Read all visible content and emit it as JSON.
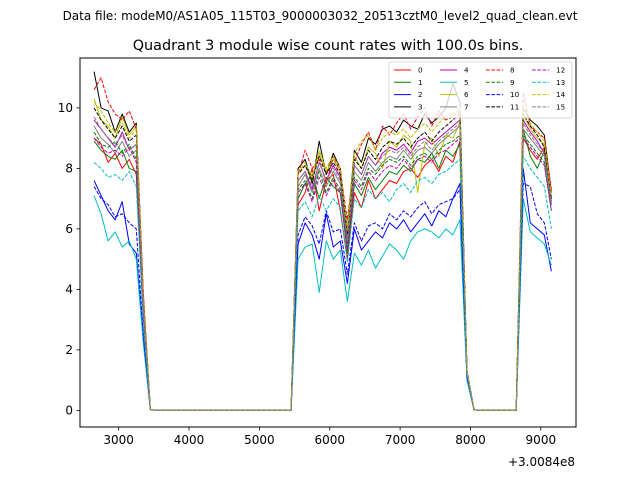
{
  "figure": {
    "suptitle": "Data file: modeM0/AS1A05_115T03_9000003032_20513cztM0_level2_quad_clean.evt"
  },
  "chart_data": {
    "type": "line",
    "title": "Quadrant 3 module wise count rates with 100.0s bins.",
    "xlabel": "",
    "ylabel": "",
    "x_offset_label": "+3.0084e8",
    "xlim": [
      2450,
      9500
    ],
    "ylim": [
      -0.55,
      11.65
    ],
    "xticks": [
      3000,
      4000,
      5000,
      6000,
      7000,
      8000,
      9000
    ],
    "xtick_labels": [
      "3000",
      "4000",
      "5000",
      "6000",
      "7000",
      "8000",
      "9000"
    ],
    "yticks": [
      0,
      2,
      4,
      6,
      8,
      10
    ],
    "ytick_labels": [
      "0",
      "2",
      "4",
      "6",
      "8",
      "10"
    ],
    "grid": false,
    "legend_position": "top-right",
    "legend_columns": 4,
    "x": [
      2650,
      2750,
      2850,
      2950,
      3050,
      3150,
      3250,
      3350,
      3450,
      3550,
      3650,
      3750,
      3850,
      3950,
      4050,
      4150,
      4250,
      4350,
      4450,
      4550,
      4650,
      4750,
      4850,
      4950,
      5050,
      5150,
      5250,
      5350,
      5450,
      5550,
      5650,
      5750,
      5850,
      5950,
      6050,
      6150,
      6250,
      6350,
      6450,
      6550,
      6650,
      6750,
      6850,
      6950,
      7050,
      7150,
      7250,
      7350,
      7450,
      7550,
      7650,
      7750,
      7850,
      7950,
      8050,
      8150,
      8250,
      8350,
      8450,
      8550,
      8650,
      8750,
      8850,
      8950,
      9050,
      9150
    ],
    "series": [
      {
        "name": "0",
        "color": "#ff0000",
        "dash": "solid",
        "values": [
          9.0,
          8.8,
          8.2,
          8.5,
          8.0,
          8.3,
          7.8,
          3.0,
          0.02,
          0,
          0,
          0,
          0,
          0,
          0,
          0,
          0,
          0,
          0,
          0,
          0,
          0,
          0,
          0,
          0,
          0,
          0,
          0,
          0,
          6.8,
          7.2,
          8.0,
          6.6,
          7.6,
          7.8,
          6.6,
          5.0,
          7.2,
          6.7,
          7.6,
          7.0,
          7.3,
          7.6,
          7.5,
          7.9,
          8.0,
          7.7,
          8.1,
          8.3,
          7.9,
          8.4,
          8.2,
          8.9,
          1.3,
          0.02,
          0,
          0,
          0,
          0,
          0,
          0,
          9.0,
          8.6,
          8.3,
          8.7,
          7.0
        ]
      },
      {
        "name": "1",
        "color": "#008000",
        "dash": "solid",
        "values": [
          8.9,
          8.6,
          8.4,
          8.3,
          8.6,
          8.0,
          7.9,
          3.1,
          0.02,
          0,
          0,
          0,
          0,
          0,
          0,
          0,
          0,
          0,
          0,
          0,
          0,
          0,
          0,
          0,
          0,
          0,
          0,
          0,
          0,
          7.0,
          7.5,
          7.8,
          7.0,
          7.7,
          7.4,
          7.2,
          5.2,
          7.5,
          7.1,
          7.7,
          7.3,
          7.6,
          7.9,
          7.8,
          8.1,
          7.9,
          8.3,
          8.2,
          8.5,
          8.0,
          8.6,
          8.4,
          8.8,
          1.2,
          0.02,
          0,
          0,
          0,
          0,
          0,
          0,
          9.3,
          8.4,
          8.0,
          8.6,
          6.8
        ]
      },
      {
        "name": "2",
        "color": "#0000ff",
        "dash": "solid",
        "values": [
          7.6,
          7.1,
          6.6,
          6.3,
          6.9,
          5.5,
          5.2,
          2.4,
          0.02,
          0,
          0,
          0,
          0,
          0,
          0,
          0,
          0,
          0,
          0,
          0,
          0,
          0,
          0,
          0,
          0,
          0,
          0,
          0,
          0,
          5.5,
          6.2,
          5.8,
          5.0,
          6.5,
          5.4,
          5.6,
          4.2,
          6.0,
          5.3,
          5.6,
          5.9,
          5.7,
          6.2,
          6.0,
          6.3,
          5.9,
          6.2,
          6.5,
          6.1,
          6.6,
          6.4,
          7.0,
          7.5,
          1.1,
          0.02,
          0,
          0,
          0,
          0,
          0,
          0,
          8.0,
          6.2,
          6.0,
          5.8,
          4.6
        ]
      },
      {
        "name": "3",
        "color": "#000000",
        "dash": "solid",
        "values": [
          11.2,
          10.0,
          9.9,
          9.2,
          9.8,
          9.2,
          9.5,
          3.8,
          0.02,
          0,
          0,
          0,
          0,
          0,
          0,
          0,
          0,
          0,
          0,
          0,
          0,
          0,
          0,
          0,
          0,
          0,
          0,
          0,
          0,
          8.0,
          8.3,
          7.5,
          8.9,
          7.8,
          8.5,
          8.0,
          6.0,
          8.6,
          8.2,
          9.0,
          8.8,
          9.3,
          9.4,
          9.2,
          9.6,
          9.4,
          9.3,
          9.8,
          9.5,
          9.7,
          10.0,
          10.8,
          10.2,
          1.3,
          0.02,
          0,
          0,
          0,
          0,
          0,
          0,
          10.0,
          9.6,
          9.4,
          9.1,
          7.2
        ]
      },
      {
        "name": "4",
        "color": "#bf00bf",
        "dash": "solid",
        "values": [
          9.6,
          9.3,
          9.0,
          8.7,
          9.2,
          8.6,
          8.8,
          3.4,
          0.02,
          0,
          0,
          0,
          0,
          0,
          0,
          0,
          0,
          0,
          0,
          0,
          0,
          0,
          0,
          0,
          0,
          0,
          0,
          0,
          0,
          7.6,
          7.9,
          7.3,
          8.2,
          7.6,
          8.1,
          7.7,
          5.6,
          8.1,
          7.8,
          8.4,
          8.1,
          8.5,
          8.7,
          8.6,
          8.8,
          8.5,
          8.9,
          9.0,
          8.8,
          9.0,
          9.2,
          9.4,
          9.6,
          1.3,
          0.02,
          0,
          0,
          0,
          0,
          0,
          0,
          9.6,
          9.2,
          8.9,
          8.5,
          6.9
        ]
      },
      {
        "name": "5",
        "color": "#00bfbf",
        "dash": "solid",
        "values": [
          7.1,
          6.5,
          5.6,
          5.9,
          5.4,
          5.6,
          5.0,
          2.2,
          0.02,
          0,
          0,
          0,
          0,
          0,
          0,
          0,
          0,
          0,
          0,
          0,
          0,
          0,
          0,
          0,
          0,
          0,
          0,
          0,
          0,
          5.0,
          5.4,
          5.5,
          3.9,
          5.6,
          5.0,
          5.3,
          3.6,
          5.2,
          4.8,
          5.3,
          4.7,
          5.1,
          5.5,
          5.3,
          5.0,
          5.6,
          5.9,
          6.0,
          5.9,
          5.7,
          6.0,
          5.8,
          6.3,
          1.0,
          0.02,
          0,
          0,
          0,
          0,
          0,
          0,
          7.0,
          5.9,
          5.7,
          5.5,
          4.8
        ]
      },
      {
        "name": "6",
        "color": "#bfbf00",
        "dash": "solid",
        "values": [
          10.3,
          9.6,
          9.4,
          9.0,
          9.7,
          9.1,
          9.4,
          3.7,
          0.02,
          0,
          0,
          0,
          0,
          0,
          0,
          0,
          0,
          0,
          0,
          0,
          0,
          0,
          0,
          0,
          0,
          0,
          0,
          0,
          0,
          7.9,
          8.1,
          7.6,
          8.5,
          7.9,
          8.3,
          7.9,
          5.9,
          8.4,
          8.0,
          8.7,
          8.5,
          8.0,
          8.9,
          8.7,
          9.1,
          8.9,
          7.2,
          8.8,
          9.0,
          8.4,
          9.1,
          9.0,
          9.5,
          1.3,
          0.02,
          0,
          0,
          0,
          0,
          0,
          0,
          9.8,
          9.3,
          9.0,
          8.8,
          7.1
        ]
      },
      {
        "name": "7",
        "color": "#808080",
        "dash": "solid",
        "values": [
          9.4,
          9.0,
          8.8,
          8.5,
          8.9,
          8.4,
          8.6,
          3.3,
          0.02,
          0,
          0,
          0,
          0,
          0,
          0,
          0,
          0,
          0,
          0,
          0,
          0,
          0,
          0,
          0,
          0,
          0,
          0,
          0,
          0,
          7.4,
          7.8,
          7.2,
          8.0,
          7.4,
          7.9,
          7.5,
          5.5,
          7.9,
          7.6,
          8.2,
          7.9,
          8.2,
          8.4,
          8.3,
          8.6,
          8.3,
          8.6,
          8.7,
          8.5,
          8.8,
          9.0,
          9.2,
          9.4,
          1.3,
          0.02,
          0,
          0,
          0,
          0,
          0,
          0,
          9.3,
          9.0,
          8.7,
          8.4,
          6.8
        ]
      },
      {
        "name": "8",
        "color": "#ff0000",
        "dash": "dashed",
        "values": [
          10.6,
          11.0,
          10.2,
          9.8,
          9.6,
          9.9,
          9.3,
          3.9,
          0.02,
          0,
          0,
          0,
          0,
          0,
          0,
          0,
          0,
          0,
          0,
          0,
          0,
          0,
          0,
          0,
          0,
          0,
          0,
          0,
          0,
          7.8,
          8.6,
          8.0,
          8.3,
          7.5,
          8.4,
          7.9,
          6.3,
          8.2,
          8.8,
          9.2,
          8.6,
          9.4,
          9.1,
          9.5,
          9.8,
          9.3,
          9.7,
          10.0,
          9.4,
          9.9,
          9.6,
          9.7,
          9.9,
          1.3,
          0.02,
          0,
          0,
          0,
          0,
          0,
          0,
          10.5,
          9.4,
          9.2,
          9.0,
          7.3
        ]
      },
      {
        "name": "9",
        "color": "#008000",
        "dash": "dashed",
        "values": [
          9.2,
          8.8,
          8.7,
          8.9,
          8.5,
          8.8,
          8.3,
          3.3,
          0.02,
          0,
          0,
          0,
          0,
          0,
          0,
          0,
          0,
          0,
          0,
          0,
          0,
          0,
          0,
          0,
          0,
          0,
          0,
          0,
          0,
          7.3,
          7.6,
          7.0,
          7.9,
          7.2,
          7.7,
          7.3,
          5.4,
          7.7,
          7.4,
          8.0,
          7.8,
          8.1,
          8.3,
          8.2,
          8.4,
          8.1,
          8.4,
          8.5,
          8.3,
          8.6,
          8.8,
          8.9,
          9.1,
          1.3,
          0.02,
          0,
          0,
          0,
          0,
          0,
          0,
          9.1,
          8.8,
          8.5,
          8.2,
          6.6
        ]
      },
      {
        "name": "10",
        "color": "#0000ff",
        "dash": "dashed",
        "values": [
          7.4,
          7.0,
          6.8,
          6.4,
          6.5,
          6.2,
          6.0,
          2.5,
          0.02,
          0,
          0,
          0,
          0,
          0,
          0,
          0,
          0,
          0,
          0,
          0,
          0,
          0,
          0,
          0,
          0,
          0,
          0,
          0,
          0,
          5.8,
          6.4,
          6.1,
          5.5,
          6.6,
          5.9,
          6.0,
          4.5,
          6.2,
          5.6,
          6.1,
          6.2,
          6.0,
          6.5,
          6.3,
          6.6,
          6.4,
          6.7,
          6.9,
          6.5,
          6.8,
          6.9,
          7.0,
          7.3,
          1.1,
          0.02,
          0,
          0,
          0,
          0,
          0,
          0,
          7.5,
          7.4,
          6.5,
          6.2,
          5.0
        ]
      },
      {
        "name": "11",
        "color": "#000000",
        "dash": "dashed",
        "values": [
          10.0,
          9.6,
          9.3,
          9.0,
          9.4,
          8.9,
          9.1,
          3.6,
          0.02,
          0,
          0,
          0,
          0,
          0,
          0,
          0,
          0,
          0,
          0,
          0,
          0,
          0,
          0,
          0,
          0,
          0,
          0,
          0,
          0,
          7.8,
          8.1,
          7.6,
          8.4,
          7.8,
          8.2,
          7.8,
          5.8,
          8.3,
          8.0,
          8.6,
          8.3,
          8.7,
          8.9,
          8.8,
          9.0,
          8.7,
          9.0,
          9.2,
          8.9,
          9.2,
          9.4,
          9.6,
          9.8,
          1.3,
          0.02,
          0,
          0,
          0,
          0,
          0,
          0,
          9.8,
          9.4,
          9.1,
          8.7,
          7.0
        ]
      },
      {
        "name": "12",
        "color": "#bf00bf",
        "dash": "dashed",
        "values": [
          9.0,
          8.7,
          8.5,
          8.6,
          8.4,
          8.7,
          8.2,
          3.2,
          0.02,
          0,
          0,
          0,
          0,
          0,
          0,
          0,
          0,
          0,
          0,
          0,
          0,
          0,
          0,
          0,
          0,
          0,
          0,
          0,
          0,
          7.2,
          7.5,
          6.9,
          7.7,
          7.1,
          7.6,
          7.2,
          5.3,
          7.6,
          7.3,
          7.9,
          7.6,
          7.9,
          8.1,
          8.0,
          8.3,
          8.0,
          8.3,
          8.4,
          8.2,
          8.5,
          8.6,
          8.8,
          9.0,
          1.2,
          0.02,
          0,
          0,
          0,
          0,
          0,
          0,
          9.0,
          8.7,
          8.4,
          8.1,
          6.6
        ]
      },
      {
        "name": "13",
        "color": "#00bfbf",
        "dash": "dashed",
        "values": [
          8.2,
          8.0,
          7.7,
          7.8,
          7.6,
          7.9,
          7.4,
          2.9,
          0.02,
          0,
          0,
          0,
          0,
          0,
          0,
          0,
          0,
          0,
          0,
          0,
          0,
          0,
          0,
          0,
          0,
          0,
          0,
          0,
          0,
          6.6,
          6.9,
          6.4,
          7.1,
          6.6,
          7.0,
          6.7,
          4.9,
          7.0,
          6.7,
          7.3,
          7.0,
          7.2,
          6.9,
          7.3,
          7.5,
          7.2,
          7.6,
          7.7,
          7.5,
          7.8,
          7.9,
          8.1,
          8.3,
          1.2,
          0.02,
          0,
          0,
          0,
          0,
          0,
          0,
          8.4,
          8.0,
          7.7,
          7.4,
          6.0
        ]
      },
      {
        "name": "14",
        "color": "#bfbf00",
        "dash": "dashed",
        "values": [
          10.2,
          9.9,
          9.5,
          9.2,
          9.5,
          9.0,
          9.3,
          3.7,
          0.02,
          0,
          0,
          0,
          0,
          0,
          0,
          0,
          0,
          0,
          0,
          0,
          0,
          0,
          0,
          0,
          0,
          0,
          0,
          0,
          0,
          7.9,
          8.2,
          7.7,
          8.6,
          8.0,
          8.4,
          8.0,
          6.0,
          8.5,
          8.9,
          9.1,
          8.6,
          9.0,
          9.2,
          9.1,
          9.3,
          9.0,
          9.3,
          9.5,
          9.2,
          9.5,
          9.7,
          9.8,
          10.0,
          1.3,
          0.02,
          0,
          0,
          0,
          0,
          0,
          0,
          10.0,
          9.5,
          9.2,
          8.9,
          7.1
        ]
      },
      {
        "name": "15",
        "color": "#808080",
        "dash": "dashed",
        "values": [
          9.7,
          9.3,
          9.0,
          8.8,
          9.1,
          8.6,
          8.8,
          3.5,
          0.02,
          0,
          0,
          0,
          0,
          0,
          0,
          0,
          0,
          0,
          0,
          0,
          0,
          0,
          0,
          0,
          0,
          0,
          0,
          0,
          0,
          7.6,
          7.9,
          7.4,
          8.2,
          7.6,
          8.0,
          7.6,
          5.6,
          8.1,
          7.8,
          8.4,
          8.1,
          8.4,
          8.6,
          8.5,
          8.7,
          8.4,
          8.7,
          8.9,
          8.6,
          8.9,
          9.1,
          9.3,
          9.5,
          1.3,
          0.02,
          0,
          0,
          0,
          0,
          0,
          0,
          9.5,
          9.1,
          8.8,
          8.5,
          6.9
        ]
      }
    ]
  }
}
